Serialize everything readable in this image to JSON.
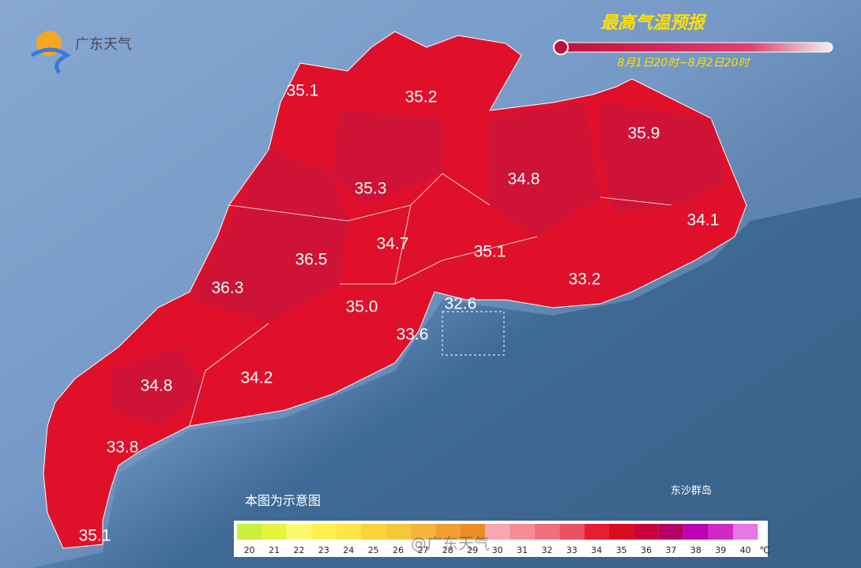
{
  "header": {
    "logo": "广东天气",
    "title": "最高气温预报",
    "period": "8月1日20时~8月2日20时"
  },
  "labels": [
    "35.1",
    "35.2",
    "35.9",
    "35.3",
    "34.8",
    "34.1",
    "34.7",
    "36.5",
    "35.1",
    "36.3",
    "33.2",
    "35.0",
    "32.6",
    "33.6",
    "34.8",
    "34.2",
    "33.8",
    "35.1"
  ],
  "note": "本图为示意图",
  "island": "东沙群岛",
  "watermark": "@广东天气",
  "legend": {
    "ticks": [
      "20",
      "21",
      "22",
      "23",
      "24",
      "25",
      "26",
      "27",
      "28",
      "29",
      "30",
      "31",
      "32",
      "33",
      "34",
      "35",
      "36",
      "37",
      "38",
      "39",
      "40"
    ],
    "colors": [
      "#c8f03c",
      "#e6f53c",
      "#fafa6e",
      "#fff050",
      "#ffe646",
      "#fad23c",
      "#f5c83c",
      "#f5b43c",
      "#f0a032",
      "#eb8c28",
      "#f8a8b0",
      "#f58c96",
      "#f06e7d",
      "#eb5064",
      "#e61e32",
      "#dc0a1e",
      "#c8003c",
      "#b40064",
      "#be00b4",
      "#d228c8",
      "#e678e6"
    ],
    "unit": "℃"
  }
}
